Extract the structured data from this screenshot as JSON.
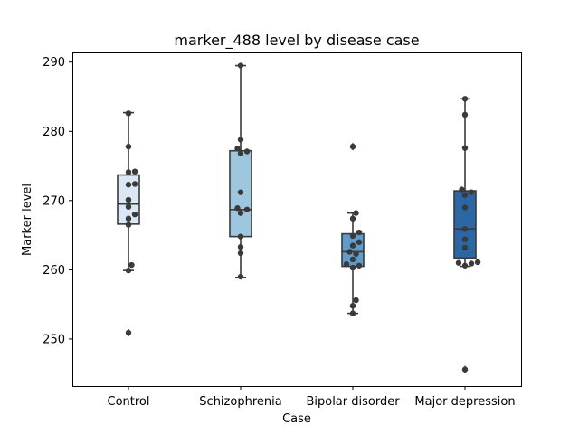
{
  "chart_data": {
    "type": "box",
    "title": "marker_488 level by disease case",
    "xlabel": "Case",
    "ylabel": "Marker level",
    "categories": [
      "Control",
      "Schizophrenia",
      "Bipolar disorder",
      "Major depression"
    ],
    "ylim": [
      243.2,
      291.4
    ],
    "yticks": [
      250,
      260,
      270,
      280,
      290
    ],
    "ytick_labels": [
      "250",
      "260",
      "270",
      "280",
      "290"
    ],
    "grid": false,
    "box_colors": [
      "#dbe7f4",
      "#9ec6de",
      "#5e9dcb",
      "#2a67a4"
    ],
    "point_color": "#3a3a3a",
    "boxes": [
      {
        "category": "Control",
        "q1": 266.6,
        "median": 269.5,
        "q3": 273.7,
        "whisker_low": 259.9,
        "whisker_high": 282.7,
        "outliers": [
          250.9
        ]
      },
      {
        "category": "Schizophrenia",
        "q1": 264.8,
        "median": 268.7,
        "q3": 277.2,
        "whisker_low": 258.9,
        "whisker_high": 289.5,
        "outliers": []
      },
      {
        "category": "Bipolar disorder",
        "q1": 260.5,
        "median": 262.6,
        "q3": 265.2,
        "whisker_low": 253.7,
        "whisker_high": 268.2,
        "outliers": [
          277.8
        ]
      },
      {
        "category": "Major depression",
        "q1": 261.7,
        "median": 265.9,
        "q3": 271.4,
        "whisker_low": 260.5,
        "whisker_high": 284.7,
        "outliers": [
          245.6
        ]
      }
    ],
    "points": [
      {
        "category": "Control",
        "values": [
          282.6,
          277.8,
          274.2,
          274.1,
          272.4,
          272.3,
          270.1,
          269.1,
          268.0,
          267.4,
          266.5,
          260.7,
          259.9,
          250.9
        ]
      },
      {
        "category": "Schizophrenia",
        "values": [
          289.5,
          278.8,
          277.5,
          277.1,
          276.8,
          271.2,
          268.9,
          268.7,
          268.2,
          264.8,
          263.3,
          262.4,
          259.0
        ]
      },
      {
        "category": "Bipolar disorder",
        "values": [
          277.8,
          268.2,
          267.4,
          265.4,
          264.9,
          264.0,
          263.5,
          262.6,
          262.3,
          261.5,
          260.8,
          260.6,
          260.3,
          255.6,
          254.8,
          253.7
        ]
      },
      {
        "category": "Major depression",
        "values": [
          284.7,
          282.4,
          277.6,
          271.6,
          271.2,
          270.8,
          269.0,
          265.9,
          264.4,
          263.2,
          261.1,
          261.0,
          260.9,
          260.6,
          245.6
        ]
      }
    ]
  }
}
